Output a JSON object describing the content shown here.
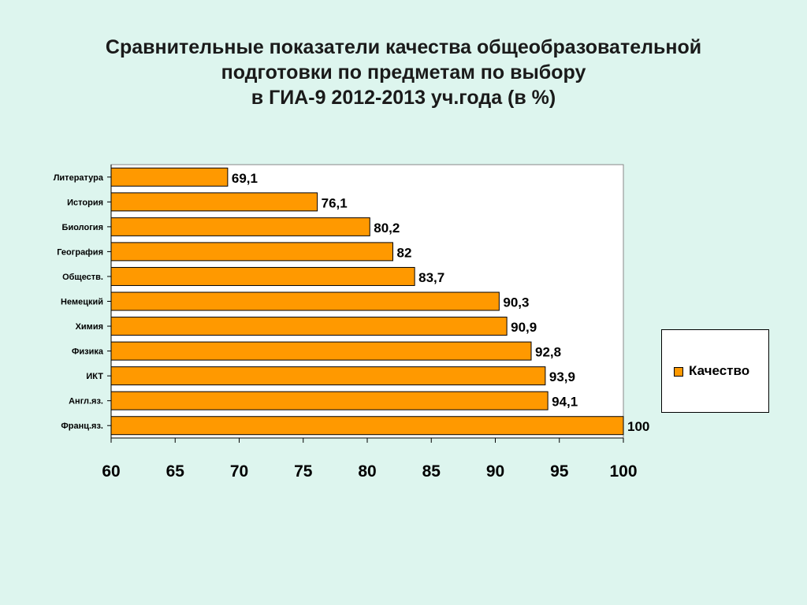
{
  "title_lines": [
    "Сравнительные показатели качества общеобразовательной",
    "подготовки по предметам по выбору",
    "в ГИА-9 2012-2013 уч.года (в %)"
  ],
  "colors": {
    "bar": "#ff9900",
    "bar_stroke": "#000000",
    "background": "#ddf5ee",
    "plot_area": "#ffffff"
  },
  "chart_data": {
    "type": "bar",
    "orientation": "horizontal",
    "categories": [
      "Литература",
      "История",
      "Биология",
      "География",
      "Обществ.",
      "Немецкий",
      "Химия",
      "Физика",
      "ИКТ",
      "Англ.яз.",
      "Франц.яз."
    ],
    "series": [
      {
        "name": "Качество",
        "values": [
          69.1,
          76.1,
          80.2,
          82,
          83.7,
          90.3,
          90.9,
          92.8,
          93.9,
          94.1,
          100
        ]
      }
    ],
    "value_labels": [
      "69,1",
      "76,1",
      "80,2",
      "82",
      "83,7",
      "90,3",
      "90,9",
      "92,8",
      "93,9",
      "94,1",
      "100"
    ],
    "xlim": [
      60,
      100
    ],
    "xticks": [
      "60",
      "65",
      "70",
      "75",
      "80",
      "85",
      "90",
      "95",
      "100"
    ],
    "grid": false,
    "legend_position": "right"
  },
  "legend": {
    "label": "Качество"
  }
}
